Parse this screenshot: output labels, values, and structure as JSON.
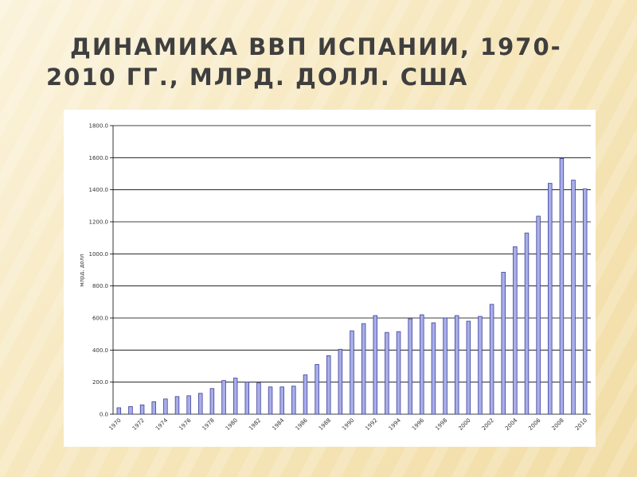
{
  "title": {
    "line1": "ДИНАМИКА ВВП ИСПАНИИ, 1970-",
    "line2": "2010 ГГ., МЛРД. ДОЛЛ. США"
  },
  "colors": {
    "bar_fill": "#a9aee8",
    "bar_edge": "#3a3f9a",
    "gridline": "#000000"
  },
  "chart_data": {
    "type": "bar",
    "title": "ДИНАМИКА ВВП ИСПАНИИ, 1970-2010 ГГ., МЛРД. ДОЛЛ. США",
    "xlabel": "",
    "ylabel": "млрд. долл",
    "ylim": [
      0,
      1800
    ],
    "y_ticks": [
      "0.0",
      "200.0",
      "400.0",
      "600.0",
      "800.0",
      "1000.0",
      "1200.0",
      "1400.0",
      "1600.0",
      "1800.0"
    ],
    "categories": [
      "1970",
      "1971",
      "1972",
      "1973",
      "1974",
      "1975",
      "1976",
      "1977",
      "1978",
      "1979",
      "1980",
      "1981",
      "1982",
      "1983",
      "1984",
      "1985",
      "1986",
      "1987",
      "1988",
      "1989",
      "1990",
      "1991",
      "1992",
      "1993",
      "1994",
      "1995",
      "1996",
      "1997",
      "1998",
      "1999",
      "2000",
      "2001",
      "2002",
      "2003",
      "2004",
      "2005",
      "2006",
      "2007",
      "2008",
      "2009",
      "2010"
    ],
    "x_tick_labels": [
      "1970",
      "1972",
      "1974",
      "1976",
      "1978",
      "1980",
      "1982",
      "1984",
      "1986",
      "1988",
      "1990",
      "1992",
      "1994",
      "1996",
      "1998",
      "2000",
      "2002",
      "2004",
      "2006",
      "2008",
      "2010"
    ],
    "values": [
      40,
      48,
      58,
      78,
      95,
      110,
      115,
      130,
      160,
      210,
      225,
      200,
      195,
      170,
      170,
      175,
      245,
      310,
      365,
      405,
      520,
      565,
      615,
      510,
      515,
      595,
      620,
      570,
      600,
      615,
      580,
      610,
      685,
      885,
      1045,
      1130,
      1235,
      1440,
      1595,
      1460,
      1405
    ],
    "grid": true,
    "legend": "none"
  }
}
